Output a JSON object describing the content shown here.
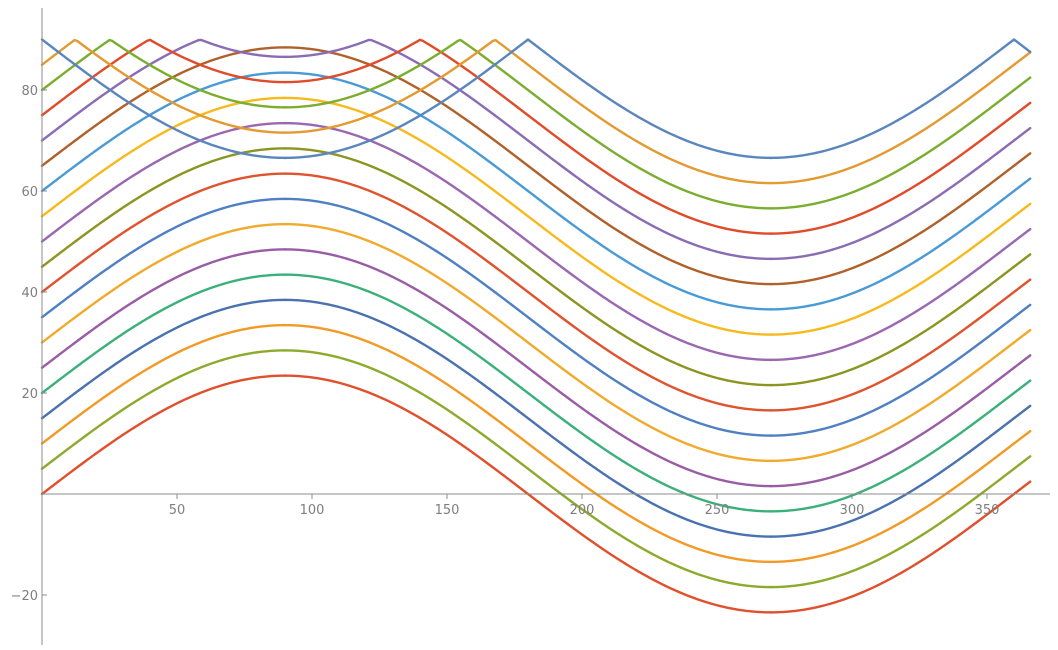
{
  "chart_data": {
    "type": "line",
    "title": "",
    "xlabel": "",
    "ylabel": "",
    "xlim": [
      0,
      370
    ],
    "ylim": [
      -30,
      95
    ],
    "grid": false,
    "legend": "none",
    "x_ticks": [
      50,
      100,
      150,
      200,
      250,
      300,
      350
    ],
    "y_ticks": [
      -20,
      20,
      40,
      60,
      80
    ],
    "x_tick_labels": [
      "50",
      "100",
      "150",
      "200",
      "250",
      "300",
      "350"
    ],
    "y_tick_labels": [
      "−20",
      "20",
      "40",
      "60",
      "80"
    ],
    "function": "y = offset + A·sin(x°), reflected at 90",
    "x_step": 1,
    "x_range": [
      0,
      366
    ],
    "amplitude": 23.44,
    "reflect_at": 90,
    "series": [
      {
        "offset": 0,
        "color": "#E0502C"
      },
      {
        "offset": 5,
        "color": "#8DAA2D"
      },
      {
        "offset": 10,
        "color": "#F29A26"
      },
      {
        "offset": 15,
        "color": "#4A72B0"
      },
      {
        "offset": 20,
        "color": "#3BB07A"
      },
      {
        "offset": 25,
        "color": "#9A5DA5"
      },
      {
        "offset": 30,
        "color": "#F0AA2C"
      },
      {
        "offset": 35,
        "color": "#4F80C4"
      },
      {
        "offset": 40,
        "color": "#E0532F"
      },
      {
        "offset": 45,
        "color": "#8C9520"
      },
      {
        "offset": 50,
        "color": "#9A67B0"
      },
      {
        "offset": 55,
        "color": "#F7BA1E"
      },
      {
        "offset": 60,
        "color": "#4A9AD6"
      },
      {
        "offset": 65,
        "color": "#B0612A"
      },
      {
        "offset": 70,
        "color": "#8A6CB4"
      },
      {
        "offset": 75,
        "color": "#E04B2A"
      },
      {
        "offset": 80,
        "color": "#7BAD2F"
      },
      {
        "offset": 85,
        "color": "#E39A30"
      },
      {
        "offset": 90,
        "color": "#5A86BD"
      }
    ]
  }
}
